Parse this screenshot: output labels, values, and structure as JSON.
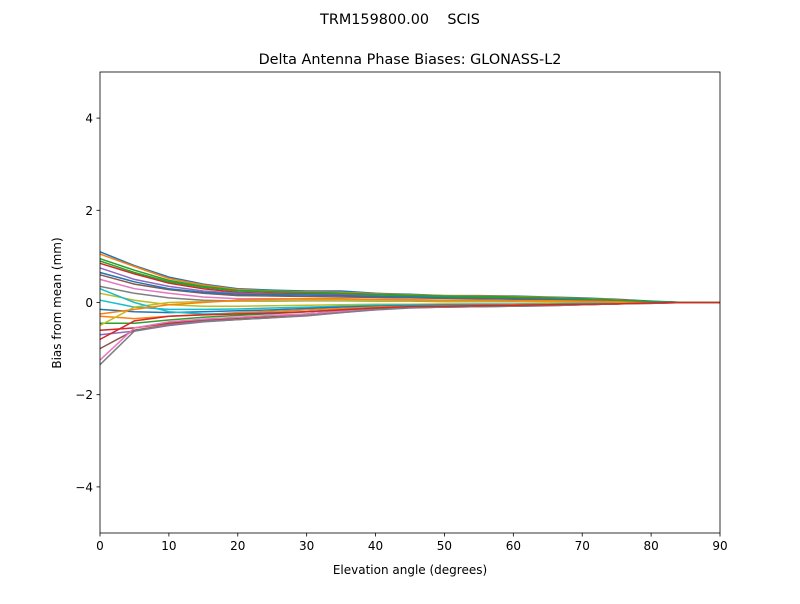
{
  "chart_data": {
    "type": "line",
    "suptitle": "TRM159800.00    SCIS",
    "title": "Delta Antenna Phase Biases: GLONASS-L2",
    "xlabel": "Elevation angle (degrees)",
    "ylabel": "Bias from mean (mm)",
    "xlim": [
      0,
      90
    ],
    "ylim": [
      -5,
      5
    ],
    "xticks": [
      0,
      10,
      20,
      30,
      40,
      50,
      60,
      70,
      80,
      90
    ],
    "yticks": [
      -4,
      -2,
      0,
      2,
      4
    ],
    "ytick_labels": [
      "−4",
      "−2",
      "0",
      "2",
      "4"
    ],
    "grid": false,
    "colors": [
      "#1f77b4",
      "#ff7f0e",
      "#2ca02c",
      "#d62728",
      "#9467bd",
      "#8c564b",
      "#e377c2",
      "#7f7f7f",
      "#bcbd22",
      "#17becf"
    ],
    "x": [
      0,
      5,
      10,
      15,
      20,
      25,
      30,
      35,
      40,
      45,
      50,
      55,
      60,
      65,
      70,
      75,
      80,
      85,
      90
    ],
    "series": [
      {
        "values": [
          1.1,
          0.8,
          0.55,
          0.4,
          0.3,
          0.27,
          0.25,
          0.25,
          0.2,
          0.18,
          0.15,
          0.15,
          0.14,
          0.12,
          0.1,
          0.07,
          0.03,
          0,
          0
        ]
      },
      {
        "values": [
          1.05,
          0.78,
          0.52,
          0.38,
          0.28,
          0.25,
          0.23,
          0.22,
          0.19,
          0.17,
          0.15,
          0.14,
          0.13,
          0.11,
          0.09,
          0.06,
          0.02,
          0,
          0
        ]
      },
      {
        "values": [
          0.95,
          0.7,
          0.48,
          0.35,
          0.26,
          0.24,
          0.22,
          0.2,
          0.18,
          0.16,
          0.14,
          0.13,
          0.12,
          0.1,
          0.08,
          0.05,
          0.02,
          0,
          0
        ]
      },
      {
        "values": [
          0.85,
          0.62,
          0.42,
          0.3,
          0.22,
          0.2,
          0.19,
          0.18,
          0.16,
          0.14,
          0.12,
          0.11,
          0.1,
          0.09,
          0.07,
          0.05,
          0.02,
          0,
          0
        ]
      },
      {
        "values": [
          0.75,
          0.5,
          0.35,
          0.25,
          0.2,
          0.18,
          0.17,
          0.16,
          0.14,
          0.12,
          0.11,
          0.1,
          0.09,
          0.08,
          0.06,
          0.04,
          0.02,
          0,
          0
        ]
      },
      {
        "values": [
          0.6,
          0.4,
          0.28,
          0.2,
          0.15,
          0.14,
          0.13,
          0.12,
          0.11,
          0.1,
          0.09,
          0.08,
          0.07,
          0.06,
          0.05,
          0.03,
          0.01,
          0,
          0
        ]
      },
      {
        "values": [
          0.5,
          0.3,
          0.2,
          0.12,
          0.08,
          0.08,
          0.08,
          0.07,
          0.07,
          0.06,
          0.05,
          0.05,
          0.04,
          0.04,
          0.03,
          0.02,
          0.01,
          0,
          0
        ]
      },
      {
        "values": [
          0.35,
          0.2,
          0.1,
          0.05,
          0.03,
          0.03,
          0.04,
          0.04,
          0.03,
          0.03,
          0.02,
          0.02,
          0.02,
          0.02,
          0.01,
          0.01,
          0,
          0,
          0
        ]
      },
      {
        "values": [
          0.2,
          0.05,
          -0.05,
          -0.08,
          -0.08,
          -0.07,
          -0.06,
          -0.05,
          -0.04,
          -0.04,
          -0.03,
          -0.03,
          -0.03,
          -0.02,
          -0.02,
          -0.01,
          0,
          0,
          0
        ]
      },
      {
        "values": [
          0.05,
          -0.1,
          -0.15,
          -0.15,
          -0.14,
          -0.12,
          -0.1,
          -0.08,
          -0.06,
          -0.05,
          -0.05,
          -0.04,
          -0.04,
          -0.03,
          -0.02,
          -0.01,
          0,
          0,
          0
        ]
      },
      {
        "values": [
          -0.15,
          -0.2,
          -0.22,
          -0.2,
          -0.18,
          -0.16,
          -0.13,
          -0.1,
          -0.08,
          -0.07,
          -0.06,
          -0.05,
          -0.05,
          -0.04,
          -0.03,
          -0.02,
          -0.01,
          0,
          0
        ]
      },
      {
        "values": [
          -0.3,
          -0.35,
          -0.3,
          -0.26,
          -0.22,
          -0.19,
          -0.16,
          -0.13,
          -0.1,
          -0.08,
          -0.07,
          -0.06,
          -0.05,
          -0.04,
          -0.03,
          -0.02,
          -0.01,
          0,
          0
        ]
      },
      {
        "values": [
          -0.45,
          -0.45,
          -0.38,
          -0.32,
          -0.28,
          -0.24,
          -0.2,
          -0.16,
          -0.12,
          -0.1,
          -0.08,
          -0.07,
          -0.06,
          -0.05,
          -0.04,
          -0.03,
          -0.01,
          0,
          0
        ]
      },
      {
        "values": [
          -0.6,
          -0.55,
          -0.45,
          -0.38,
          -0.33,
          -0.29,
          -0.25,
          -0.19,
          -0.14,
          -0.11,
          -0.09,
          -0.08,
          -0.07,
          -0.06,
          -0.05,
          -0.03,
          -0.01,
          0,
          0
        ]
      },
      {
        "values": [
          -0.7,
          -0.62,
          -0.5,
          -0.42,
          -0.37,
          -0.33,
          -0.29,
          -0.22,
          -0.16,
          -0.12,
          -0.1,
          -0.09,
          -0.08,
          -0.07,
          -0.05,
          -0.03,
          -0.02,
          0,
          0
        ]
      },
      {
        "values": [
          -1.0,
          -0.6,
          -0.48,
          -0.4,
          -0.36,
          -0.32,
          -0.28,
          -0.21,
          -0.15,
          -0.11,
          -0.1,
          -0.09,
          -0.08,
          -0.06,
          -0.05,
          -0.03,
          -0.01,
          0,
          0
        ]
      },
      {
        "values": [
          -1.25,
          -0.55,
          -0.42,
          -0.36,
          -0.32,
          -0.28,
          -0.25,
          -0.19,
          -0.14,
          -0.1,
          -0.09,
          -0.08,
          -0.07,
          -0.06,
          -0.04,
          -0.03,
          -0.01,
          0,
          0
        ]
      },
      {
        "values": [
          -1.35,
          -0.62,
          -0.48,
          -0.41,
          -0.37,
          -0.33,
          -0.28,
          -0.22,
          -0.15,
          -0.11,
          -0.1,
          -0.09,
          -0.08,
          -0.07,
          -0.05,
          -0.03,
          -0.02,
          0,
          0
        ]
      },
      {
        "values": [
          -0.5,
          -0.1,
          0.0,
          0.02,
          0.03,
          0.04,
          0.05,
          0.05,
          0.04,
          0.04,
          0.03,
          0.03,
          0.03,
          0.02,
          0.02,
          0.01,
          0,
          0,
          0
        ]
      },
      {
        "values": [
          0.3,
          0.0,
          -0.2,
          -0.25,
          -0.24,
          -0.22,
          -0.2,
          -0.16,
          -0.12,
          -0.1,
          -0.08,
          -0.07,
          -0.06,
          -0.05,
          -0.04,
          -0.03,
          -0.01,
          0,
          0
        ]
      },
      {
        "values": [
          0.65,
          0.45,
          0.3,
          0.22,
          0.18,
          0.17,
          0.16,
          0.15,
          0.13,
          0.12,
          0.1,
          0.1,
          0.09,
          0.08,
          0.06,
          0.04,
          0.02,
          0,
          0
        ]
      },
      {
        "values": [
          -0.25,
          -0.15,
          -0.05,
          0.0,
          0.05,
          0.07,
          0.08,
          0.08,
          0.07,
          0.06,
          0.05,
          0.05,
          0.04,
          0.04,
          0.03,
          0.02,
          0.01,
          0,
          0
        ]
      },
      {
        "values": [
          0.9,
          0.65,
          0.45,
          0.33,
          0.25,
          0.23,
          0.21,
          0.2,
          0.17,
          0.15,
          0.13,
          0.12,
          0.11,
          0.1,
          0.08,
          0.05,
          0.02,
          0,
          0
        ]
      },
      {
        "values": [
          -0.8,
          -0.4,
          -0.3,
          -0.27,
          -0.25,
          -0.23,
          -0.2,
          -0.16,
          -0.12,
          -0.09,
          -0.08,
          -0.07,
          -0.06,
          -0.05,
          -0.04,
          -0.03,
          -0.01,
          0,
          0
        ]
      }
    ]
  }
}
